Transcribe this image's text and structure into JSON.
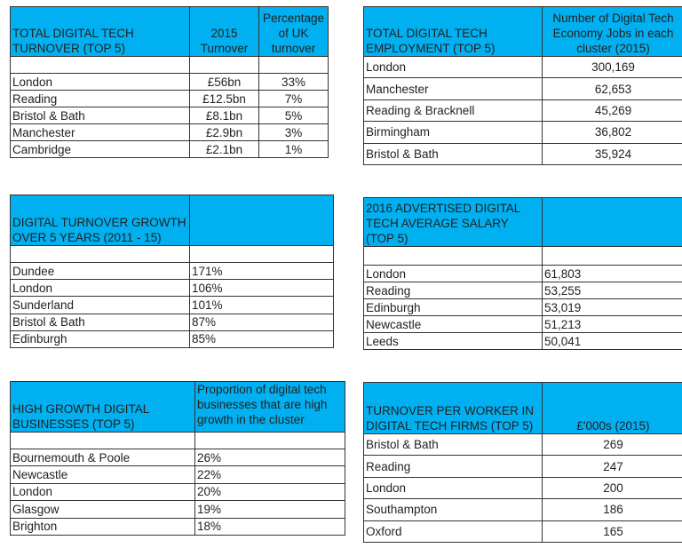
{
  "tables": [
    {
      "header": [
        "TOTAL DIGITAL TECH TURNOVER (TOP 5)",
        "2015 Turnover",
        "Percentage of UK turnover"
      ],
      "rows": [
        [
          "London",
          "£56bn",
          "33%"
        ],
        [
          "Reading",
          "£12.5bn",
          "7%"
        ],
        [
          "Bristol & Bath",
          "£8.1bn",
          "5%"
        ],
        [
          "Manchester",
          "£2.9bn",
          "3%"
        ],
        [
          "Cambridge",
          "£2.1bn",
          "1%"
        ]
      ]
    },
    {
      "header": [
        "TOTAL DIGITAL TECH EMPLOYMENT (TOP 5)",
        "Number of Digital Tech Economy Jobs in each cluster (2015)"
      ],
      "rows": [
        [
          "London",
          "300,169"
        ],
        [
          "Manchester",
          "62,653"
        ],
        [
          "Reading & Bracknell",
          "45,269"
        ],
        [
          "Birmingham",
          "36,802"
        ],
        [
          "Bristol & Bath",
          "35,924"
        ]
      ]
    },
    {
      "header": [
        "DIGITAL TURNOVER GROWTH OVER 5 YEARS (2011 - 15)",
        ""
      ],
      "rows": [
        [
          "Dundee",
          "171%"
        ],
        [
          "London",
          "106%"
        ],
        [
          "Sunderland",
          "101%"
        ],
        [
          "Bristol & Bath",
          "87%"
        ],
        [
          "Edinburgh",
          "85%"
        ]
      ]
    },
    {
      "header": [
        "2016 ADVERTISED DIGITAL TECH AVERAGE SALARY (TOP 5)",
        ""
      ],
      "rows": [
        [
          "London",
          "61,803"
        ],
        [
          "Reading",
          "53,255"
        ],
        [
          "Edinburgh",
          "53,019"
        ],
        [
          "Newcastle",
          "51,213"
        ],
        [
          "Leeds",
          "50,041"
        ]
      ]
    },
    {
      "header": [
        "HIGH GROWTH DIGITAL BUSINESSES (TOP 5)",
        "Proportion of digital tech businesses that are high growth in the cluster"
      ],
      "rows": [
        [
          "Bournemouth & Poole",
          "26%"
        ],
        [
          "Newcastle",
          "22%"
        ],
        [
          "London",
          "20%"
        ],
        [
          "Glasgow",
          "19%"
        ],
        [
          "Brighton",
          "18%"
        ]
      ]
    },
    {
      "header": [
        "TURNOVER PER WORKER IN DIGITAL TECH FIRMS (TOP 5)",
        "£'000s (2015)"
      ],
      "rows": [
        [
          "Bristol & Bath",
          "269"
        ],
        [
          "Reading",
          "247"
        ],
        [
          "London",
          "200"
        ],
        [
          "Southampton",
          "186"
        ],
        [
          "Oxford",
          "165"
        ]
      ]
    }
  ]
}
